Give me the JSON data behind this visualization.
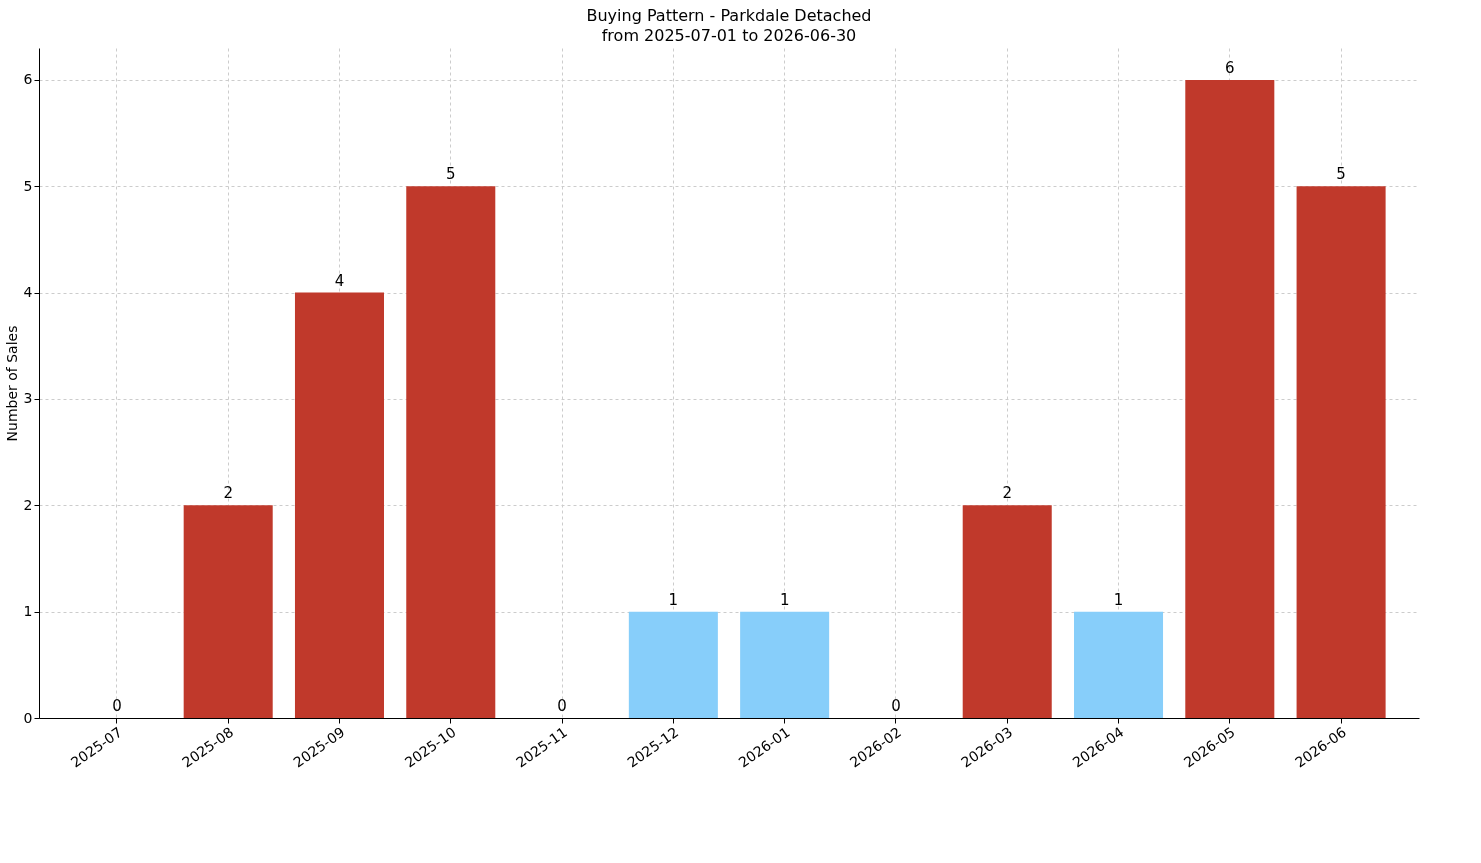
{
  "chart_data": {
    "type": "bar",
    "title": "Buying Pattern - Parkdale Detached",
    "subtitle": "from 2025-07-01 to 2026-06-30",
    "ylabel": "Number of Sales",
    "categories": [
      "2025-07",
      "2025-08",
      "2025-09",
      "2025-10",
      "2025-11",
      "2025-12",
      "2026-01",
      "2026-02",
      "2026-03",
      "2026-04",
      "2026-05",
      "2026-06"
    ],
    "values": [
      0,
      2,
      4,
      5,
      0,
      1,
      1,
      0,
      2,
      1,
      6,
      5
    ],
    "colors": [
      "#c0392b",
      "#c0392b",
      "#c0392b",
      "#c0392b",
      "#c0392b",
      "#87cefa",
      "#87cefa",
      "#c0392b",
      "#c0392b",
      "#87cefa",
      "#c0392b",
      "#c0392b"
    ],
    "ylim": [
      0,
      6.3
    ],
    "yticks": [
      0,
      1,
      2,
      3,
      4,
      5,
      6
    ],
    "grid": true,
    "data_labels": true
  }
}
